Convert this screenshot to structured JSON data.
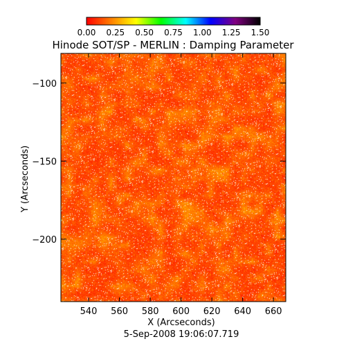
{
  "chart_data": {
    "type": "heatmap",
    "title": "Hinode SOT/SP - MERLIN : Damping Parameter",
    "xlabel": "X (Arcseconds)",
    "ylabel": "Y (Arcseconds)",
    "timestamp": "5-Sep-2008 19:06:07.719",
    "xlim": [
      522,
      668
    ],
    "ylim": [
      -240,
      -81
    ],
    "x_ticks": [
      {
        "value": 540,
        "label": "540"
      },
      {
        "value": 560,
        "label": "560"
      },
      {
        "value": 580,
        "label": "580"
      },
      {
        "value": 600,
        "label": "600"
      },
      {
        "value": 620,
        "label": "620"
      },
      {
        "value": 640,
        "label": "640"
      },
      {
        "value": 660,
        "label": "660"
      }
    ],
    "y_ticks": [
      {
        "value": -100,
        "label": "−100"
      },
      {
        "value": -150,
        "label": "−150"
      },
      {
        "value": -200,
        "label": "−200"
      }
    ],
    "colorbar": {
      "range": [
        0.0,
        1.5
      ],
      "tick_labels": [
        "0.00",
        "0.25",
        "0.50",
        "0.75",
        "1.00",
        "1.25",
        "1.50"
      ],
      "colormap_stops": [
        "#ff0000",
        "#ff8000",
        "#ffff00",
        "#00ff00",
        "#00ffff",
        "#0000ff",
        "#800080",
        "#000000"
      ]
    },
    "field": {
      "typical_value_range": [
        0.05,
        0.45
      ],
      "dominant_color": "#ff4a14",
      "speckle_color": "#ffffff"
    }
  }
}
